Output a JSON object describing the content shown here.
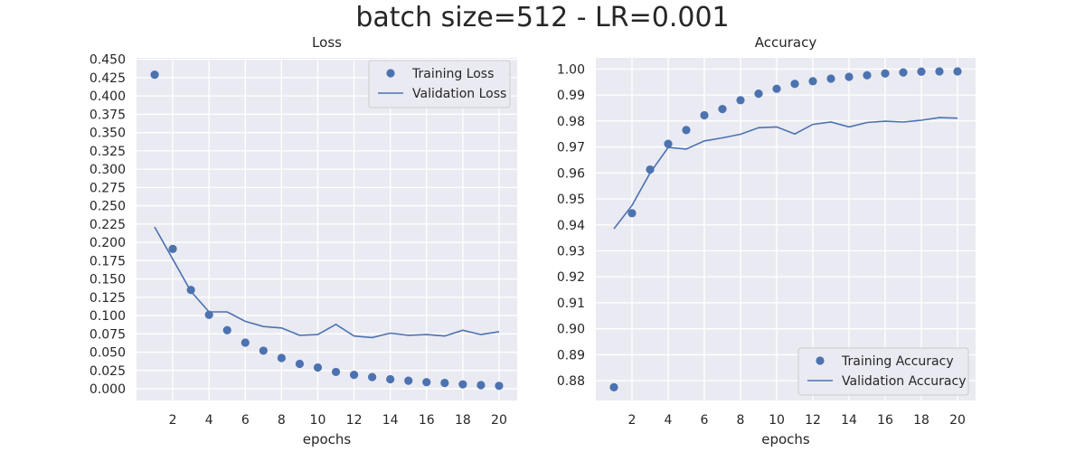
{
  "figure": {
    "title": "batch size=512 - LR=0.001"
  },
  "colors": {
    "series": "#4c72b0",
    "panel": "#eaeaf2",
    "grid": "#ffffff",
    "text": "#262626"
  },
  "chart_data": [
    {
      "type": "scatter+line",
      "title": "Loss",
      "xlabel": "epochs",
      "ylabel": "",
      "xlim": [
        0,
        21
      ],
      "ylim": [
        -0.016,
        0.452
      ],
      "xticks": [
        2,
        4,
        6,
        8,
        10,
        12,
        14,
        16,
        18,
        20
      ],
      "yticks": [
        0.0,
        0.025,
        0.05,
        0.075,
        0.1,
        0.125,
        0.15,
        0.175,
        0.2,
        0.225,
        0.25,
        0.275,
        0.3,
        0.325,
        0.35,
        0.375,
        0.4,
        0.425,
        0.45
      ],
      "ytick_labels": [
        "0.000",
        "0.025",
        "0.050",
        "0.075",
        "0.100",
        "0.125",
        "0.150",
        "0.175",
        "0.200",
        "0.225",
        "0.250",
        "0.275",
        "0.300",
        "0.325",
        "0.350",
        "0.375",
        "0.400",
        "0.425",
        "0.450"
      ],
      "grid": true,
      "legend": "top-right",
      "x": [
        1,
        2,
        3,
        4,
        5,
        6,
        7,
        8,
        9,
        10,
        11,
        12,
        13,
        14,
        15,
        16,
        17,
        18,
        19,
        20
      ],
      "series": [
        {
          "name": "Training Loss",
          "style": "markers",
          "values": [
            0.429,
            0.191,
            0.135,
            0.101,
            0.08,
            0.063,
            0.052,
            0.042,
            0.034,
            0.029,
            0.023,
            0.019,
            0.016,
            0.013,
            0.011,
            0.009,
            0.008,
            0.006,
            0.005,
            0.004
          ]
        },
        {
          "name": "Validation Loss",
          "style": "line",
          "values": [
            0.221,
            0.177,
            0.133,
            0.105,
            0.105,
            0.092,
            0.085,
            0.083,
            0.073,
            0.074,
            0.088,
            0.072,
            0.07,
            0.076,
            0.073,
            0.074,
            0.072,
            0.08,
            0.074,
            0.078
          ]
        }
      ]
    },
    {
      "type": "scatter+line",
      "title": "Accuracy",
      "xlabel": "epochs",
      "ylabel": "",
      "xlim": [
        0,
        21
      ],
      "ylim": [
        0.8724,
        1.0043
      ],
      "xticks": [
        2,
        4,
        6,
        8,
        10,
        12,
        14,
        16,
        18,
        20
      ],
      "yticks": [
        0.88,
        0.89,
        0.9,
        0.91,
        0.92,
        0.93,
        0.94,
        0.95,
        0.96,
        0.97,
        0.98,
        0.99,
        1.0
      ],
      "ytick_labels": [
        "0.88",
        "0.89",
        "0.90",
        "0.91",
        "0.92",
        "0.93",
        "0.94",
        "0.95",
        "0.96",
        "0.97",
        "0.98",
        "0.99",
        "1.00"
      ],
      "grid": true,
      "legend": "bottom-right",
      "x": [
        1,
        2,
        3,
        4,
        5,
        6,
        7,
        8,
        9,
        10,
        11,
        12,
        13,
        14,
        15,
        16,
        17,
        18,
        19,
        20
      ],
      "series": [
        {
          "name": "Training Accuracy",
          "style": "markers",
          "values": [
            0.8775,
            0.9445,
            0.9613,
            0.9712,
            0.9765,
            0.9822,
            0.9846,
            0.988,
            0.9905,
            0.9924,
            0.9943,
            0.9953,
            0.9963,
            0.997,
            0.9976,
            0.9983,
            0.9987,
            0.999,
            0.9991,
            0.9991
          ]
        },
        {
          "name": "Validation Accuracy",
          "style": "line",
          "values": [
            0.9385,
            0.9475,
            0.96,
            0.9698,
            0.9692,
            0.9723,
            0.9735,
            0.9749,
            0.9774,
            0.9777,
            0.975,
            0.9787,
            0.9796,
            0.9777,
            0.9794,
            0.9799,
            0.9796,
            0.9803,
            0.9813,
            0.9811
          ]
        }
      ]
    }
  ]
}
